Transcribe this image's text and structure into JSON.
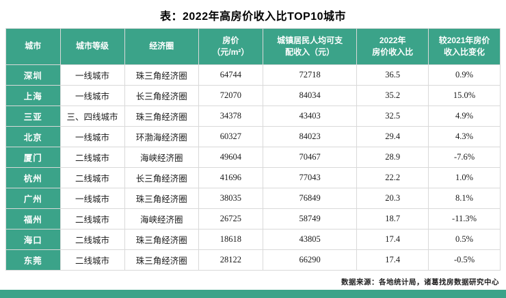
{
  "title": "表：2022年高房价收入比TOP10城市",
  "header_display": [
    "城市",
    "城市等级",
    "经济圈",
    "房价\n（元/m²）",
    "城镇居民人均可支\n配收入（元）",
    "2022年\n房价收入比",
    "较2021年房价\n收入比变化"
  ],
  "chart_data": {
    "type": "table",
    "title": "表：2022年高房价收入比TOP10城市",
    "columns": [
      "城市",
      "城市等级",
      "经济圈",
      "房价（元/m²）",
      "城镇居民人均可支配收入（元）",
      "2022年房价收入比",
      "较2021年房价收入比变化"
    ],
    "rows": [
      [
        "深圳",
        "一线城市",
        "珠三角经济圈",
        64744,
        72718,
        36.5,
        "0.9%"
      ],
      [
        "上海",
        "一线城市",
        "长三角经济圈",
        72070,
        84034,
        35.2,
        "15.0%"
      ],
      [
        "三亚",
        "三、四线城市",
        "珠三角经济圈",
        34378,
        43403,
        32.5,
        "4.9%"
      ],
      [
        "北京",
        "一线城市",
        "环渤海经济圈",
        60327,
        84023,
        29.4,
        "4.3%"
      ],
      [
        "厦门",
        "二线城市",
        "海峡经济圈",
        49604,
        70467,
        28.9,
        "-7.6%"
      ],
      [
        "杭州",
        "二线城市",
        "长三角经济圈",
        41696,
        77043,
        22.2,
        "1.0%"
      ],
      [
        "广州",
        "一线城市",
        "珠三角经济圈",
        38035,
        76849,
        20.3,
        "8.1%"
      ],
      [
        "福州",
        "二线城市",
        "海峡经济圈",
        26725,
        58749,
        18.7,
        "-11.3%"
      ],
      [
        "海口",
        "二线城市",
        "珠三角经济圈",
        18618,
        43805,
        17.4,
        "0.5%"
      ],
      [
        "东莞",
        "二线城市",
        "珠三角经济圈",
        28122,
        66290,
        17.4,
        "-0.5%"
      ]
    ]
  },
  "footer": {
    "source": "数据来源：各地统计局，诸葛找房数据研究中心"
  },
  "colors": {
    "accent": "#3BA389",
    "border": "#D9D9D9"
  }
}
